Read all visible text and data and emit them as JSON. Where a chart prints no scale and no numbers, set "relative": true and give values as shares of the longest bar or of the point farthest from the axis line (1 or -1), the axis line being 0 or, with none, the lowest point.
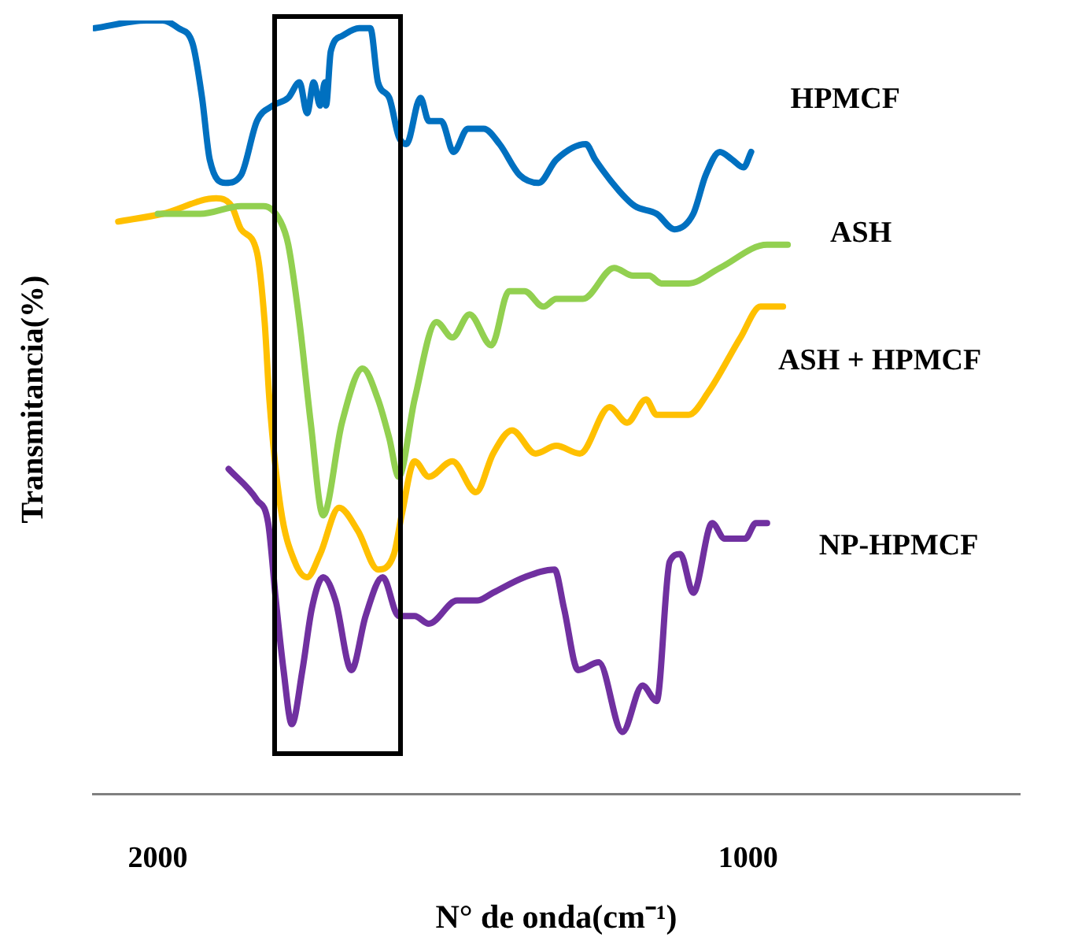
{
  "chart_data": {
    "type": "line",
    "relative": true,
    "xlabel": "N° de onda(cm⁻¹)",
    "ylabel": "Transmitancia(%)",
    "xlim": [
      2110,
      540
    ],
    "xticks": [
      2000,
      1000
    ],
    "grid": false,
    "legend": false,
    "marker": "none",
    "line_style": "solid",
    "series": [
      {
        "name": "HPMCF",
        "color": "#0070c0",
        "x": [
          2107,
          2019,
          1992,
          1965,
          1941,
          1925,
          1912,
          1885,
          1859,
          1832,
          1805,
          1779,
          1760,
          1747,
          1736,
          1725,
          1717,
          1715,
          1707,
          1688,
          1659,
          1640,
          1627,
          1608,
          1592,
          1579,
          1555,
          1541,
          1520,
          1499,
          1475,
          1448,
          1421,
          1387,
          1355,
          1325,
          1275,
          1259,
          1219,
          1192,
          1155,
          1125,
          1093,
          1072,
          1048,
          1027,
          1008,
          995
        ],
        "values": [
          0.99,
          1.0,
          1.0,
          0.99,
          0.97,
          0.9,
          0.82,
          0.79,
          0.8,
          0.87,
          0.89,
          0.9,
          0.92,
          0.88,
          0.92,
          0.89,
          0.92,
          0.89,
          0.96,
          0.98,
          0.99,
          0.99,
          0.92,
          0.9,
          0.85,
          0.84,
          0.9,
          0.87,
          0.87,
          0.83,
          0.86,
          0.86,
          0.84,
          0.8,
          0.79,
          0.82,
          0.84,
          0.82,
          0.78,
          0.76,
          0.75,
          0.73,
          0.75,
          0.8,
          0.83,
          0.82,
          0.81,
          0.83
        ]
      },
      {
        "name": "ASH",
        "color": "#92d050",
        "x": [
          2000,
          1928,
          1859,
          1821,
          1792,
          1779,
          1760,
          1741,
          1720,
          1688,
          1653,
          1627,
          1608,
          1592,
          1565,
          1528,
          1501,
          1472,
          1435,
          1405,
          1379,
          1347,
          1325,
          1280,
          1227,
          1195,
          1168,
          1147,
          1101,
          1048,
          968,
          933
        ],
        "values": [
          0.75,
          0.75,
          0.76,
          0.76,
          0.74,
          0.71,
          0.61,
          0.48,
          0.36,
          0.48,
          0.55,
          0.51,
          0.46,
          0.41,
          0.51,
          0.61,
          0.59,
          0.62,
          0.58,
          0.65,
          0.65,
          0.63,
          0.64,
          0.64,
          0.68,
          0.67,
          0.67,
          0.66,
          0.66,
          0.68,
          0.71,
          0.71
        ]
      },
      {
        "name": "ASH + HPMCF",
        "color": "#ffc000",
        "x": [
          2067,
          1992,
          1901,
          1875,
          1859,
          1832,
          1819,
          1811,
          1792,
          1768,
          1747,
          1725,
          1693,
          1661,
          1627,
          1600,
          1587,
          1565,
          1541,
          1501,
          1461,
          1432,
          1400,
          1360,
          1325,
          1285,
          1235,
          1205,
          1173,
          1155,
          1101,
          1067,
          1013,
          979,
          941
        ],
        "values": [
          0.74,
          0.75,
          0.77,
          0.76,
          0.73,
          0.7,
          0.61,
          0.51,
          0.37,
          0.3,
          0.28,
          0.31,
          0.37,
          0.34,
          0.29,
          0.31,
          0.36,
          0.43,
          0.41,
          0.43,
          0.39,
          0.44,
          0.47,
          0.44,
          0.45,
          0.44,
          0.5,
          0.48,
          0.51,
          0.49,
          0.49,
          0.52,
          0.59,
          0.63,
          0.63
        ]
      },
      {
        "name": "NP-HPMCF",
        "color": "#7030a0",
        "x": [
          1880,
          1832,
          1813,
          1800,
          1787,
          1773,
          1755,
          1739,
          1720,
          1699,
          1672,
          1648,
          1619,
          1592,
          1565,
          1541,
          1493,
          1459,
          1432,
          1379,
          1328,
          1312,
          1288,
          1253,
          1213,
          1179,
          1155,
          1133,
          1115,
          1093,
          1061,
          1040,
          1005,
          987,
          968
        ],
        "values": [
          0.42,
          0.38,
          0.35,
          0.25,
          0.16,
          0.09,
          0.16,
          0.24,
          0.28,
          0.25,
          0.16,
          0.23,
          0.28,
          0.23,
          0.23,
          0.22,
          0.25,
          0.25,
          0.26,
          0.28,
          0.29,
          0.24,
          0.16,
          0.17,
          0.08,
          0.14,
          0.12,
          0.3,
          0.31,
          0.26,
          0.35,
          0.33,
          0.33,
          0.35,
          0.35
        ]
      }
    ]
  }
}
